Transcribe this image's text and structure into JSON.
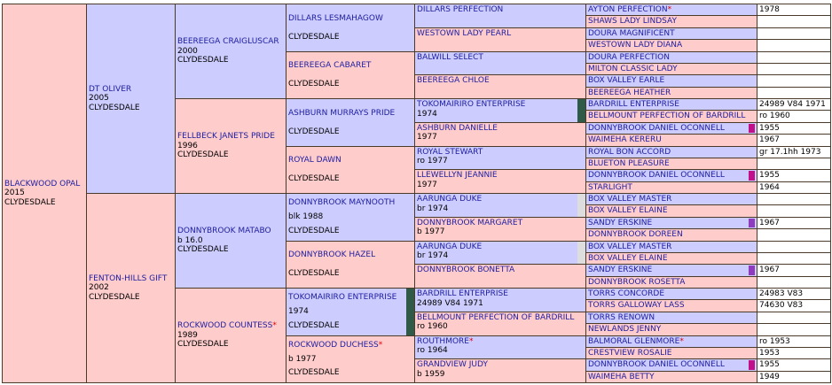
{
  "gen1": [
    {
      "name": "BLACKWOOD OPAL",
      "details": [
        "2015",
        "CLYDESDALE"
      ]
    }
  ],
  "gen2": [
    {
      "name": "DT OLIVER",
      "details": [
        "2005",
        "CLYDESDALE"
      ]
    },
    {
      "name": "FENTON-HILLS GIFT",
      "details": [
        "2002",
        "CLYDESDALE"
      ]
    }
  ],
  "gen3": [
    {
      "name": "BEEREEGA CRAIGLUSCAR",
      "details": [
        "2000",
        "CLYDESDALE"
      ]
    },
    {
      "name": "FELLBECK JANETS PRIDE",
      "details": [
        "1996",
        "CLYDESDALE"
      ]
    },
    {
      "name": "DONNYBROOK MATABO",
      "details": [
        "b 16.0",
        "CLYDESDALE"
      ]
    },
    {
      "name": "ROCKWOOD COUNTESS",
      "star": "*",
      "details": [
        "1989",
        "CLYDESDALE"
      ]
    }
  ],
  "gen4": [
    {
      "name": "DILLARS LESMAHAGOW",
      "details": [
        "CLYDESDALE"
      ]
    },
    {
      "name": "BEEREEGA CABARET",
      "details": [
        "CLYDESDALE"
      ]
    },
    {
      "name": "ASHBURN MURRAYS PRIDE",
      "details": [
        "CLYDESDALE"
      ]
    },
    {
      "name": "ROYAL DAWN",
      "details": [
        "CLYDESDALE"
      ]
    },
    {
      "name": "DONNYBROOK MAYNOOTH",
      "details": [
        "blk 1988",
        "CLYDESDALE"
      ]
    },
    {
      "name": "DONNYBROOK HAZEL",
      "details": [
        "CLYDESDALE"
      ]
    },
    {
      "name": "TOKOMAIRIRO ENTERPRISE",
      "details": [
        "1974",
        "CLYDESDALE"
      ],
      "marker": "#2f5a48"
    },
    {
      "name": "ROCKWOOD DUCHESS",
      "star": "*",
      "details": [
        "b 1977",
        "CLYDESDALE"
      ]
    }
  ],
  "gen5": [
    {
      "name": "DILLARS PERFECTION",
      "details": []
    },
    {
      "name": "WESTOWN LADY PEARL",
      "details": []
    },
    {
      "name": "BALWILL SELECT",
      "details": []
    },
    {
      "name": "BEEREEGA CHLOE",
      "details": []
    },
    {
      "name": "TOKOMAIRIRO ENTERPRISE",
      "details": [
        "1974"
      ],
      "marker": "#2f5a48"
    },
    {
      "name": "ASHBURN DANIELLE",
      "details": [
        "1977"
      ]
    },
    {
      "name": "ROYAL STEWART",
      "details": [
        "ro 1977"
      ]
    },
    {
      "name": "LLEWELLYN JEANNIE",
      "details": [
        "1977"
      ]
    },
    {
      "name": "AARUNGA DUKE",
      "details": [
        "br 1974"
      ],
      "marker": "#dddddd"
    },
    {
      "name": "DONNYBROOK MARGARET",
      "details": [
        "b 1977"
      ]
    },
    {
      "name": "AARUNGA DUKE",
      "details": [
        "br 1974"
      ],
      "marker": "#dddddd"
    },
    {
      "name": "DONNYBROOK BONETTA",
      "details": []
    },
    {
      "name": "BARDRILL ENTERPRISE",
      "details": [
        "24989 V84 1971"
      ]
    },
    {
      "name": "BELLMOUNT PERFECTION OF BARDRILL",
      "details": [
        "ro 1960"
      ]
    },
    {
      "name": "ROUTHMORE",
      "star": "*",
      "details": [
        "ro 1964"
      ]
    },
    {
      "name": "GRANDVIEW JUDY",
      "details": [
        "b 1959"
      ]
    }
  ],
  "gen6": [
    {
      "name": "AYTON PERFECTION",
      "star": "*",
      "extra": "1978"
    },
    {
      "name": "SHAWS LADY LINDSAY"
    },
    {
      "name": "DOURA MAGNIFICENT"
    },
    {
      "name": "WESTOWN LADY DIANA"
    },
    {
      "name": "DOURA PERFECTION"
    },
    {
      "name": "MILTON CLASSIC LADY"
    },
    {
      "name": "BOX VALLEY EARLE"
    },
    {
      "name": "BEEREEGA HEATHER"
    },
    {
      "name": "BARDRILL ENTERPRISE",
      "extra": "24989 V84 1971"
    },
    {
      "name": "BELLMOUNT PERFECTION OF BARDRILL",
      "extra": "ro 1960"
    },
    {
      "name": "DONNYBROOK DANIEL OCONNELL",
      "extra": "1955",
      "marker": "#c0108a"
    },
    {
      "name": "WAIMEHA KERERU",
      "extra": "1967"
    },
    {
      "name": "ROYAL BON ACCORD",
      "extra": "gr 17.1hh 1973"
    },
    {
      "name": "BLUETON PLEASURE"
    },
    {
      "name": "DONNYBROOK DANIEL OCONNELL",
      "extra": "1955",
      "marker": "#c0108a"
    },
    {
      "name": "STARLIGHT",
      "extra": "1964"
    },
    {
      "name": "BOX VALLEY MASTER"
    },
    {
      "name": "BOX VALLEY ELAINE"
    },
    {
      "name": "SANDY ERSKINE",
      "extra": "1967",
      "marker": "#8e3bc0"
    },
    {
      "name": "DONNYBROOK DOREEN"
    },
    {
      "name": "BOX VALLEY MASTER"
    },
    {
      "name": "BOX VALLEY ELAINE"
    },
    {
      "name": "SANDY ERSKINE",
      "extra": "1967",
      "marker": "#8e3bc0"
    },
    {
      "name": "DONNYBROOK ROSETTA"
    },
    {
      "name": "TORRS CONCORDE",
      "extra": "24983 V83"
    },
    {
      "name": "TORRS GALLOWAY LASS",
      "extra": "74630 V83"
    },
    {
      "name": "TORRS RENOWN"
    },
    {
      "name": "NEWLANDS JENNY"
    },
    {
      "name": "BALMORAL GLENMORE",
      "star": "*",
      "extra": "ro 1953"
    },
    {
      "name": "CRESTVIEW ROSALIE",
      "extra": "1953"
    },
    {
      "name": "DONNYBROOK DANIEL OCONNELL",
      "extra": "1955",
      "marker": "#c0108a"
    },
    {
      "name": "WAIMEHA BETTY",
      "extra": "1949"
    }
  ]
}
